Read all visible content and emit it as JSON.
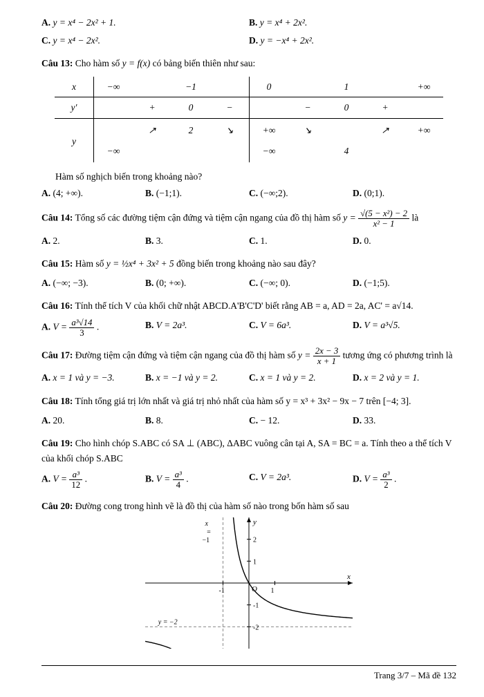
{
  "pre_options": {
    "A": "y = x⁴ − 2x² + 1.",
    "B": "y = x⁴ + 2x².",
    "C": "y = x⁴ − 2x².",
    "D": "y = −x⁴ + 2x²."
  },
  "q13": {
    "label": "Câu 13:",
    "prompt_before": "Cho hàm số ",
    "func": "y = f(x)",
    "prompt_after": " có bảng biến thiên như sau:",
    "subprompt": "Hàm số nghịch biến trong khoảng nào?",
    "opts": {
      "A": "(4; +∞).",
      "B": "(−1;1).",
      "C": "(−∞;2).",
      "D": "(0;1)."
    },
    "table": {
      "x": [
        "−∞",
        "",
        "−1",
        "",
        "0",
        "",
        "1",
        "",
        "+∞"
      ],
      "yp": [
        "",
        "+",
        "0",
        "−",
        "",
        "−",
        "0",
        "+",
        ""
      ],
      "top": [
        "",
        "",
        "2",
        "",
        "+∞",
        "",
        "",
        "",
        "+∞"
      ],
      "bot": [
        "−∞",
        "",
        "",
        "",
        "−∞",
        "",
        "4",
        "",
        ""
      ]
    }
  },
  "q14": {
    "label": "Câu 14:",
    "prompt": "Tổng số các đường tiệm cận đứng và tiệm cận ngang của đồ thị hàm số ",
    "formula_num": "√(5 − x²) − 2",
    "formula_den": "x² − 1",
    "tail": " là",
    "opts": {
      "A": "2.",
      "B": "3.",
      "C": "1.",
      "D": "0."
    }
  },
  "q15": {
    "label": "Câu 15:",
    "prompt_before": "Hàm số ",
    "formula_text": "y = ½x⁴ + 3x² + 5",
    "prompt_after": " đồng biến trong khoảng nào sau đây?",
    "opts": {
      "A": "(−∞; −3).",
      "B": "(0; +∞).",
      "C": "(−∞; 0).",
      "D": "(−1;5)."
    }
  },
  "q16": {
    "label": "Câu 16:",
    "prompt": "Tính thể tích V của khối chữ nhật ABCD.A'B'C'D' biết rằng AB = a, AD = 2a, AC' = a√14.",
    "opts": {
      "A_before": "V = ",
      "A_num": "a³√14",
      "A_den": "3",
      "A_after": ".",
      "B": "V = 2a³.",
      "C": "V = 6a³.",
      "D": "V = a³√5."
    }
  },
  "q17": {
    "label": "Câu 17:",
    "prompt_before": "Đường tiệm cận đứng và tiệm cận ngang của đồ thị hàm số ",
    "formula_num": "2x − 3",
    "formula_den": "x + 1",
    "prompt_after": " tương ứng có phương trình là",
    "opts": {
      "A": "x = 1 và y = −3.",
      "B": "x = −1 và y = 2.",
      "C": "x = 1 và y = 2.",
      "D": "x = 2 và y = 1."
    }
  },
  "q18": {
    "label": "Câu 18:",
    "prompt": "Tính tổng giá trị lớn nhất và giá trị nhỏ nhất của hàm số y = x³ + 3x² − 9x − 7 trên [−4; 3].",
    "opts": {
      "A": "20.",
      "B": "8.",
      "C": "− 12.",
      "D": "33."
    }
  },
  "q19": {
    "label": "Câu 19:",
    "prompt": "Cho hình chóp S.ABC có SA ⊥ (ABC), ΔABC vuông cân tại A, SA = BC = a. Tính theo a thể tích V của khối chóp S.ABC",
    "opts": {
      "A_before": "V = ",
      "A_num": "a³",
      "A_den": "12",
      "A_after": ".",
      "B_before": "V = ",
      "B_num": "a³",
      "B_den": "4",
      "B_after": ".",
      "C": "V = 2a³.",
      "D_before": "V = ",
      "D_num": "a³",
      "D_den": "2",
      "D_after": "."
    }
  },
  "q20": {
    "label": "Câu 20:",
    "prompt": "Đường cong trong hình vẽ là đồ thị của hàm số nào trong bốn hàm số sau",
    "graph": {
      "xlim": [
        -4,
        4
      ],
      "ylim": [
        -3,
        3
      ],
      "asymptote_x": -1,
      "asymptote_y": -2,
      "curve_color": "#000000",
      "axis_color": "#000000",
      "asymptote_color": "#888888",
      "x_ticks": [
        -1,
        1
      ],
      "y_ticks": [
        -2,
        -1,
        1,
        2
      ],
      "labels": {
        "y_asym_label": "y = −2",
        "x_asym_label_top": "−1",
        "x_asym_x": "x = "
      }
    }
  },
  "footer": "Trang 3/7 – Mã đề 132",
  "letters": {
    "A": "A.",
    "B": "B.",
    "C": "C.",
    "D": "D."
  }
}
